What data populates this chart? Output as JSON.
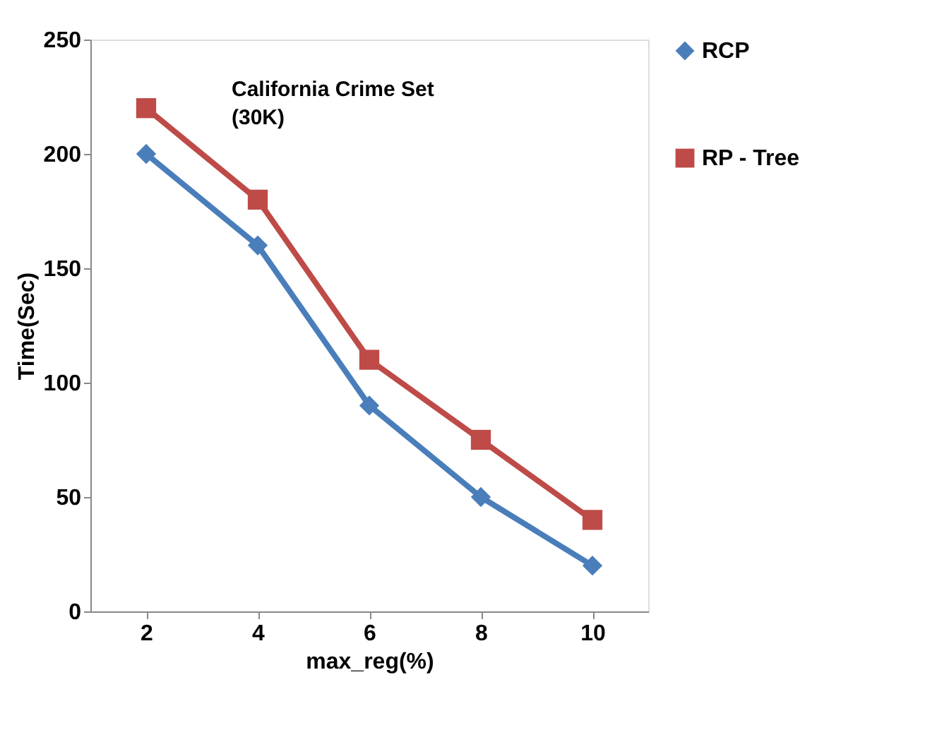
{
  "chart_data": {
    "type": "line",
    "xlabel": "max_reg(%)",
    "ylabel": "Time(Sec)",
    "categories": [
      "2",
      "4",
      "6",
      "8",
      "10"
    ],
    "series": [
      {
        "name": "RCP",
        "color": "#4a7ebb",
        "marker": "diamond",
        "values": [
          200,
          160,
          90,
          50,
          20
        ]
      },
      {
        "name": "RP - Tree",
        "color": "#be4b48",
        "marker": "square",
        "values": [
          220,
          180,
          110,
          75,
          40
        ]
      }
    ],
    "ylim": [
      0,
      250
    ],
    "yticks": [
      0,
      50,
      100,
      150,
      200,
      250
    ],
    "grid": false,
    "legend": "right",
    "annotations": [
      "California Crime Set (30K)"
    ]
  }
}
